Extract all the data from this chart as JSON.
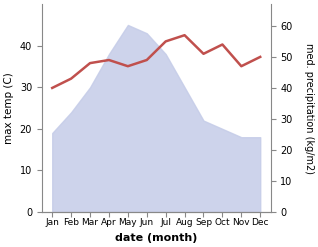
{
  "months": [
    "Jan",
    "Feb",
    "Mar",
    "Apr",
    "May",
    "Jun",
    "Jul",
    "Aug",
    "Sep",
    "Oct",
    "Nov",
    "Dec"
  ],
  "max_temp": [
    19,
    24,
    30,
    38,
    45,
    43,
    38,
    30,
    22,
    20,
    18,
    18
  ],
  "precipitation": [
    40,
    43,
    48,
    49,
    47,
    49,
    55,
    57,
    51,
    54,
    47,
    50
  ],
  "precip_color": "#c0504d",
  "temp_fill_color": "#c5cce8",
  "temp_fill_alpha": 0.85,
  "ylabel_left": "max temp (C)",
  "ylabel_right": "med. precipitation (kg/m2)",
  "xlabel": "date (month)",
  "ylim_left": [
    0,
    50
  ],
  "ylim_right": [
    0,
    67
  ],
  "yticks_left": [
    0,
    10,
    20,
    30,
    40
  ],
  "yticks_right": [
    0,
    10,
    20,
    30,
    40,
    50,
    60
  ],
  "background_color": "#ffffff"
}
